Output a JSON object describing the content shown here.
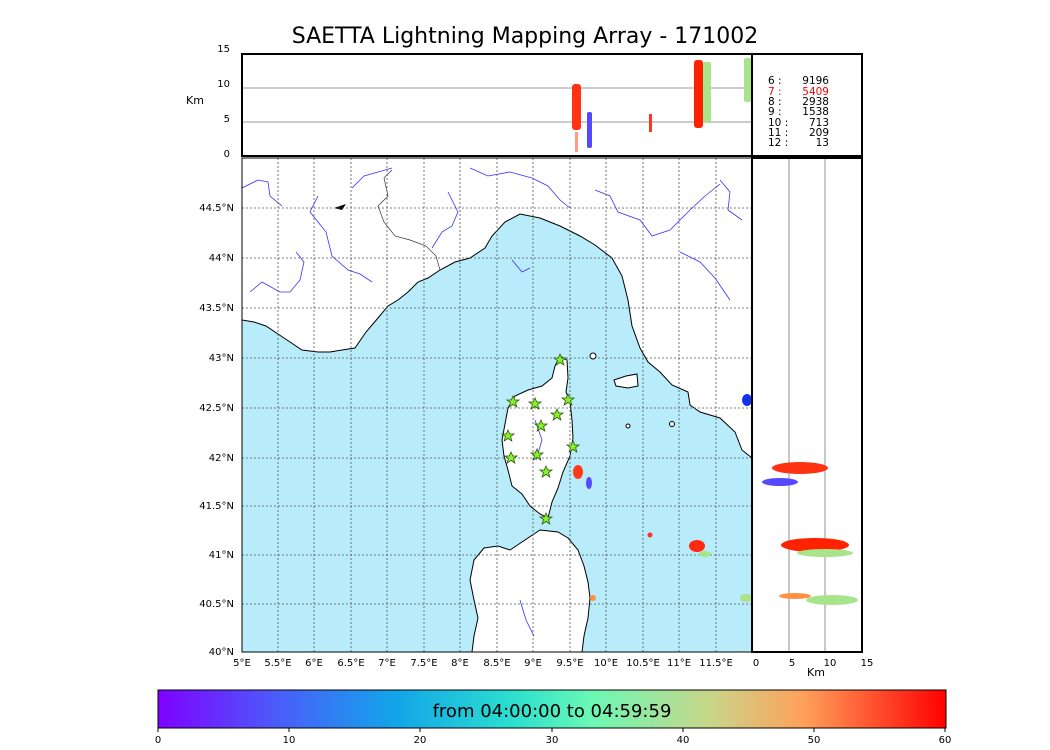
{
  "title": "SAETTA Lightning Mapping Array - 171002",
  "alt_axis": {
    "unit_label": "Km",
    "top_ticks": [
      "15",
      "10",
      "5",
      "0"
    ],
    "right_ticks": [
      "0",
      "5",
      "10",
      "15"
    ]
  },
  "map": {
    "lon_ticks": [
      "5°E",
      "5.5°E",
      "6°E",
      "6.5°E",
      "7°E",
      "7.5°E",
      "8°E",
      "8.5°E",
      "9°E",
      "9.5°E",
      "10°E",
      "10.5°E",
      "11°E",
      "11.5°E"
    ],
    "lat_ticks": [
      "44.5°N",
      "44°N",
      "43.5°N",
      "43°N",
      "42.5°N",
      "42°N",
      "41.5°N",
      "41°N",
      "40.5°N",
      "40°N"
    ],
    "sea_color": "#b8ecfb",
    "land_color": "#ffffff",
    "river_color": "#3333ff",
    "station_color": "#88ee33"
  },
  "stats": [
    {
      "label": "6  :",
      "value": "9196",
      "color": "#000000"
    },
    {
      "label": "7  :",
      "value": "5409",
      "color": "#ff0000"
    },
    {
      "label": "8  :",
      "value": "2938",
      "color": "#000000"
    },
    {
      "label": "9  :",
      "value": "1538",
      "color": "#000000"
    },
    {
      "label": "10 :",
      "value": "713",
      "color": "#000000"
    },
    {
      "label": "11 :",
      "value": "209",
      "color": "#000000"
    },
    {
      "label": "12 :",
      "value": "13",
      "color": "#000000"
    }
  ],
  "colorbar": {
    "label": "from 04:00:00 to 04:59:59",
    "ticks": [
      "0",
      "10",
      "20",
      "30",
      "40",
      "50",
      "60"
    ]
  }
}
